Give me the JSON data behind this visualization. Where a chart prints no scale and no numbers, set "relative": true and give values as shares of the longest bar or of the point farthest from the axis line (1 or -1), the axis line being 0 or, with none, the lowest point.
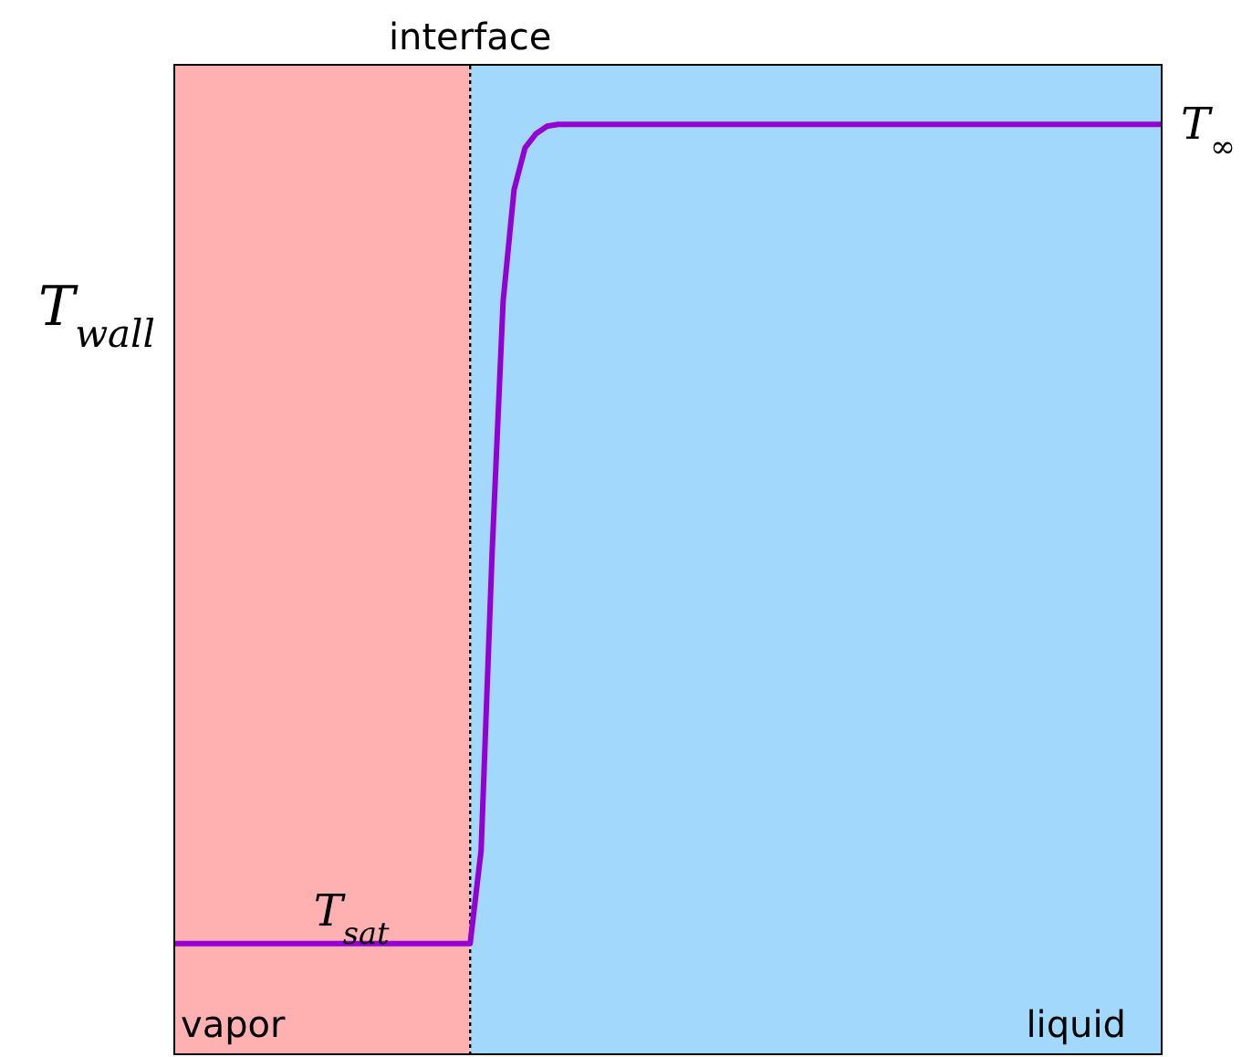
{
  "chart_data": {
    "type": "line",
    "relative": true,
    "categories": [
      null,
      null,
      null,
      null,
      null,
      null,
      null,
      null,
      null,
      null,
      null,
      null,
      null,
      null,
      null,
      null,
      null,
      null,
      null,
      null,
      null,
      null,
      null,
      null,
      null,
      null,
      null,
      null,
      null,
      null,
      null,
      null,
      null,
      null,
      null,
      null,
      null,
      null,
      null,
      null,
      null,
      null,
      null,
      null,
      null,
      null,
      null,
      null,
      null,
      null,
      null,
      null,
      null,
      null,
      null,
      null,
      null,
      null,
      null,
      null,
      null,
      null,
      null,
      null,
      null,
      null,
      null,
      null,
      null,
      null,
      null,
      null,
      null,
      null,
      null,
      null,
      null,
      null,
      null,
      null,
      null,
      null,
      null,
      null,
      null,
      null,
      null,
      null,
      null,
      null,
      null
    ],
    "series": [
      {
        "color": "#9400d3",
        "values": [
          0.12,
          0.12,
          0.12,
          0.12,
          0.12,
          0.12,
          0.12,
          0.12,
          0.12,
          0.12,
          0.12,
          0.12,
          0.12,
          0.12,
          0.12,
          0.12,
          0.12,
          0.12,
          0.12,
          0.12,
          0.12,
          0.12,
          0.12,
          0.12,
          0.12,
          0.12,
          0.12,
          0.12,
          0.22,
          0.54,
          0.81,
          0.93,
          0.975,
          0.99,
          0.998,
          1,
          1,
          1,
          1,
          1,
          1,
          1,
          1,
          1,
          1,
          1,
          1,
          1,
          1,
          1,
          1,
          1,
          1,
          1,
          1,
          1,
          1,
          1,
          1,
          1,
          1,
          1,
          1,
          1,
          1,
          1,
          1,
          1,
          1,
          1,
          1,
          1,
          1,
          1,
          1,
          1,
          1,
          1,
          1,
          1,
          1,
          1,
          1,
          1,
          1,
          1,
          1,
          1,
          1,
          1,
          1
        ]
      }
    ],
    "grid": false,
    "legend": false,
    "marker": "none",
    "line_style": "solid",
    "ref_lines": [
      {
        "axis": "x",
        "label": "interface",
        "color": "#000000",
        "line_style": "dotted"
      }
    ],
    "annotations": [
      "T$_{wall}$",
      "T$_{sat}$",
      "T$_{∞}$",
      "vapor",
      "liquid"
    ]
  }
}
